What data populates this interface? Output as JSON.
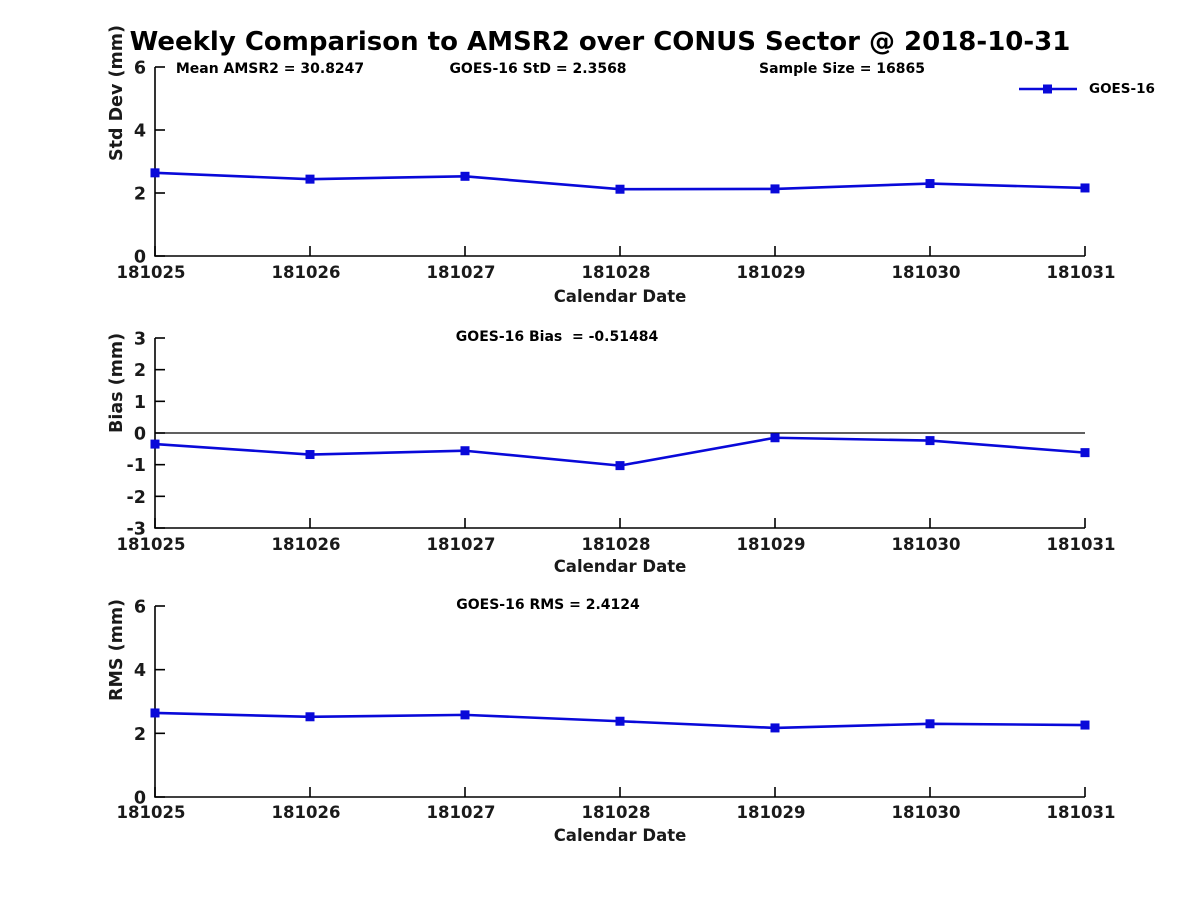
{
  "title": "Weekly Comparison to AMSR2 over CONUS Sector @ 2018-10-31",
  "colors": {
    "line": "#0909d9",
    "axis": "#000000",
    "tick_text": "#1a1a1a",
    "background": "#ffffff"
  },
  "legend": {
    "label": "GOES-16"
  },
  "chart_data": [
    {
      "type": "line",
      "name": "std-dev",
      "title": "",
      "ylabel": "Std Dev (mm)",
      "xlabel": "Calendar Date",
      "categories": [
        "181025",
        "181026",
        "181027",
        "181028",
        "181029",
        "181030",
        "181031"
      ],
      "series": [
        {
          "name": "GOES-16",
          "values": [
            2.64,
            2.44,
            2.53,
            2.12,
            2.13,
            2.3,
            2.16
          ]
        }
      ],
      "ylim": [
        0,
        6
      ],
      "yticks": [
        0,
        2,
        4,
        6
      ],
      "grid": false,
      "legend_position": "upper-right-inside",
      "annotations": [
        "Mean AMSR2 = 30.8247",
        "GOES-16 StD = 2.3568",
        "Sample Size = 16865"
      ]
    },
    {
      "type": "line",
      "name": "bias",
      "title": "",
      "ylabel": "Bias (mm)",
      "xlabel": "Calendar Date",
      "categories": [
        "181025",
        "181026",
        "181027",
        "181028",
        "181029",
        "181030",
        "181031"
      ],
      "series": [
        {
          "name": "GOES-16",
          "values": [
            -0.35,
            -0.68,
            -0.56,
            -1.03,
            -0.15,
            -0.24,
            -0.62
          ]
        }
      ],
      "ylim": [
        -3,
        3
      ],
      "yticks": [
        -3,
        -2,
        -1,
        0,
        1,
        2,
        3
      ],
      "zero_line": true,
      "grid": false,
      "annotations": [
        "GOES-16 Bias  = -0.51484"
      ]
    },
    {
      "type": "line",
      "name": "rms",
      "title": "",
      "ylabel": "RMS (mm)",
      "xlabel": "Calendar Date",
      "categories": [
        "181025",
        "181026",
        "181027",
        "181028",
        "181029",
        "181030",
        "181031"
      ],
      "series": [
        {
          "name": "GOES-16",
          "values": [
            2.64,
            2.52,
            2.58,
            2.38,
            2.17,
            2.3,
            2.26
          ]
        }
      ],
      "ylim": [
        0,
        6
      ],
      "yticks": [
        0,
        2,
        4,
        6
      ],
      "grid": false,
      "annotations": [
        "GOES-16 RMS = 2.4124"
      ]
    }
  ]
}
